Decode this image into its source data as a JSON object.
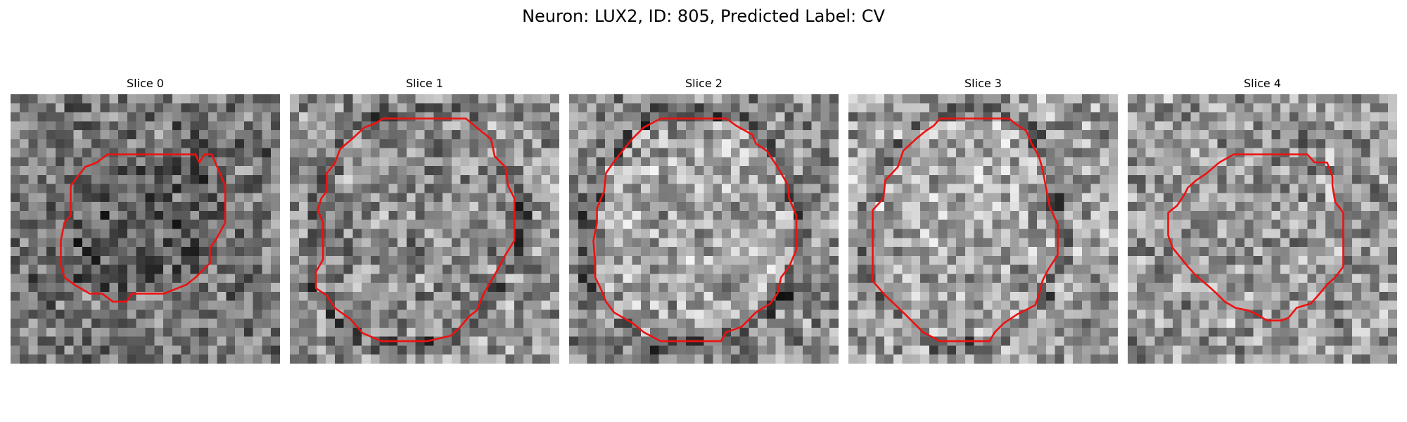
{
  "figure": {
    "title": "Neuron: LUX2, ID: 805, Predicted Label: CV"
  },
  "panels": [
    {
      "title": "Slice 0"
    },
    {
      "title": "Slice 1"
    },
    {
      "title": "Slice 2"
    },
    {
      "title": "Slice 3"
    },
    {
      "title": "Slice 4"
    }
  ],
  "colors": {
    "contour": "#ee1111",
    "background": "#ffffff"
  }
}
